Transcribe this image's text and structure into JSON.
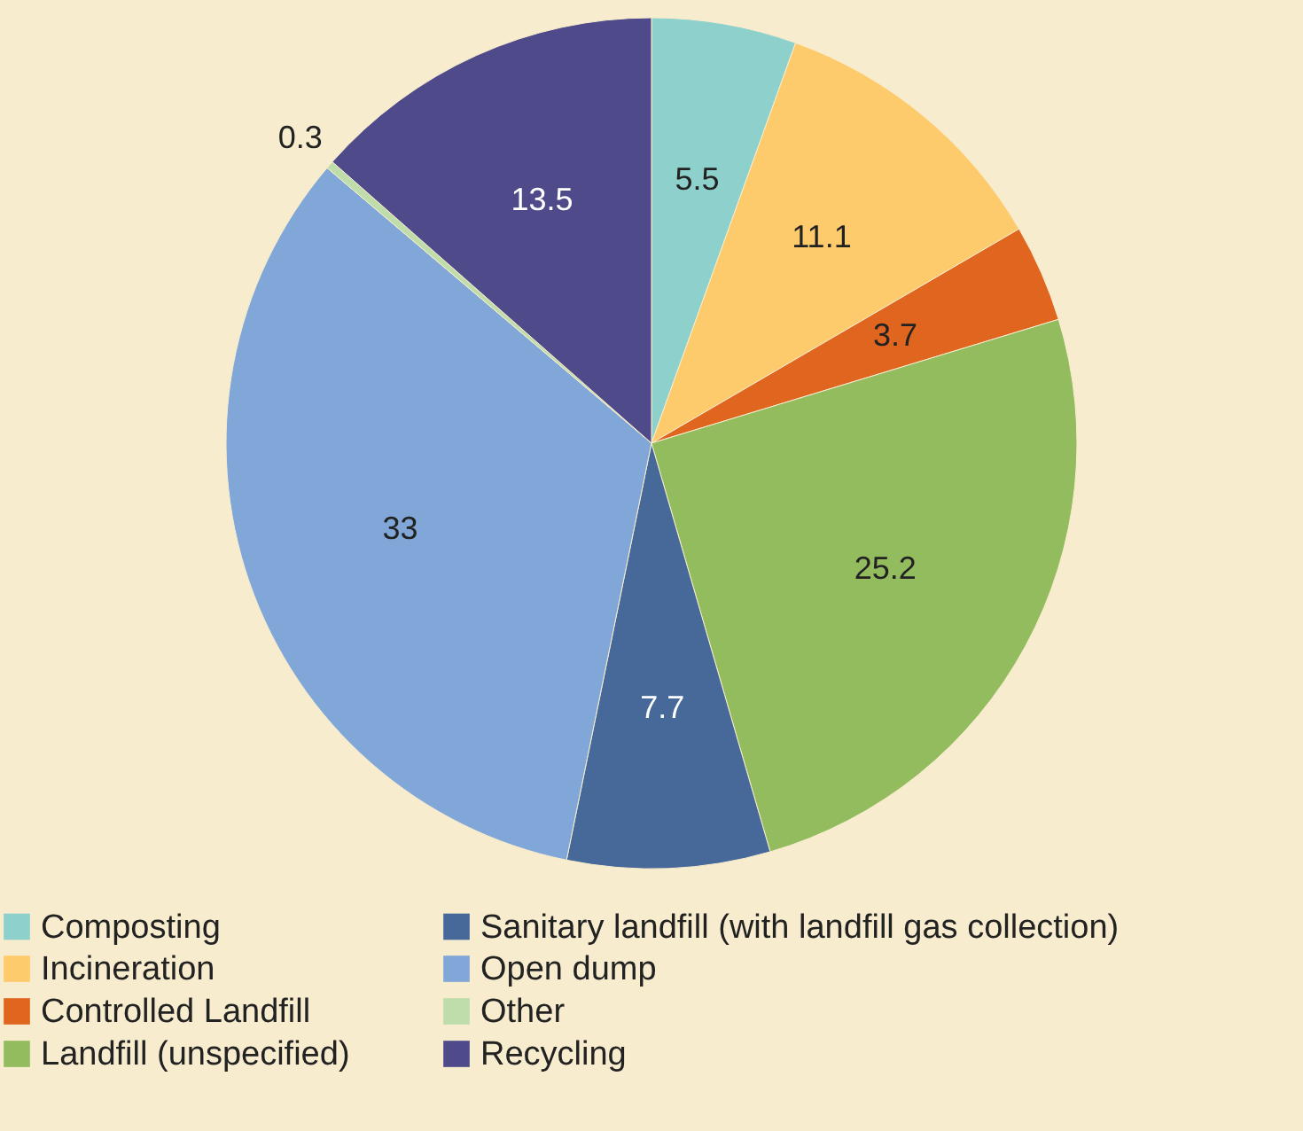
{
  "chart_data": {
    "type": "pie",
    "categories": [
      "Composting",
      "Incineration",
      "Controlled Landfill",
      "Landfill (unspecified)",
      "Sanitary landfill (with landfill gas collection)",
      "Open dump",
      "Other",
      "Recycling"
    ],
    "values": [
      5.5,
      11.1,
      3.7,
      25.2,
      7.7,
      33,
      0.3,
      13.5
    ],
    "colors": [
      "#8ed1cc",
      "#fdcb6b",
      "#e0661f",
      "#93bc5f",
      "#46699a",
      "#80a7d8",
      "#bfdcab",
      "#4f4a8a"
    ],
    "data_labels": true,
    "legend": "bottom"
  }
}
